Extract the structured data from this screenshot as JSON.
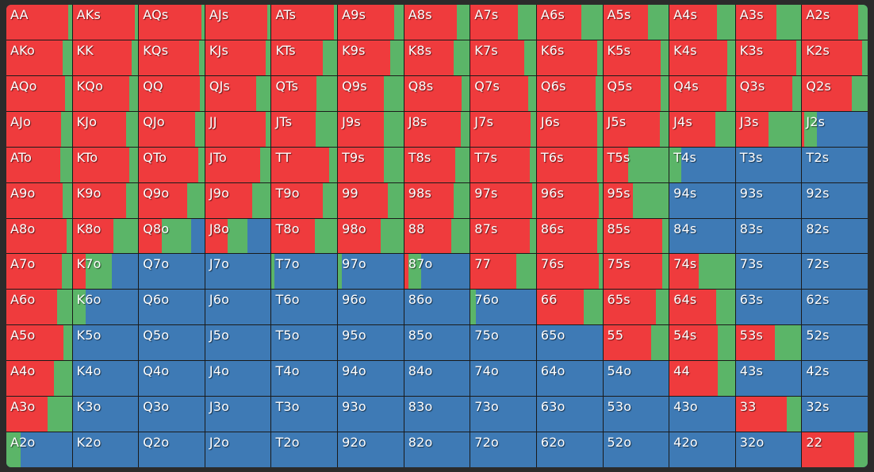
{
  "colors": {
    "raise": "#ef3b3d",
    "call": "#5bb568",
    "fold": "#3e7ab5",
    "background": "#2b2b2b"
  },
  "grid": {
    "rows": [
      [
        {
          "hand": "AA",
          "raise": 0.95,
          "call": 0.05
        },
        {
          "hand": "AKs",
          "raise": 0.95,
          "call": 0.05
        },
        {
          "hand": "AQs",
          "raise": 0.95,
          "call": 0.05
        },
        {
          "hand": "AJs",
          "raise": 0.95,
          "call": 0.05
        },
        {
          "hand": "ATs",
          "raise": 0.95,
          "call": 0.05
        },
        {
          "hand": "A9s",
          "raise": 0.86,
          "call": 0.14
        },
        {
          "hand": "A8s",
          "raise": 0.8,
          "call": 0.2
        },
        {
          "hand": "A7s",
          "raise": 0.72,
          "call": 0.28
        },
        {
          "hand": "A6s",
          "raise": 0.68,
          "call": 0.32
        },
        {
          "hand": "A5s",
          "raise": 0.68,
          "call": 0.32
        },
        {
          "hand": "A4s",
          "raise": 0.73,
          "call": 0.27
        },
        {
          "hand": "A3s",
          "raise": 0.62,
          "call": 0.38
        },
        {
          "hand": "A2s",
          "raise": 0.85,
          "call": 0.15
        }
      ],
      [
        {
          "hand": "AKo",
          "raise": 0.86,
          "call": 0.14
        },
        {
          "hand": "KK",
          "raise": 0.9,
          "call": 0.1
        },
        {
          "hand": "KQs",
          "raise": 0.92,
          "call": 0.08
        },
        {
          "hand": "KJs",
          "raise": 0.92,
          "call": 0.08
        },
        {
          "hand": "KTs",
          "raise": 0.78,
          "call": 0.22
        },
        {
          "hand": "K9s",
          "raise": 0.8,
          "call": 0.2
        },
        {
          "hand": "K8s",
          "raise": 0.76,
          "call": 0.24
        },
        {
          "hand": "K7s",
          "raise": 0.82,
          "call": 0.18
        },
        {
          "hand": "K6s",
          "raise": 0.92,
          "call": 0.08
        },
        {
          "hand": "K5s",
          "raise": 0.88,
          "call": 0.12
        },
        {
          "hand": "K4s",
          "raise": 0.88,
          "call": 0.12
        },
        {
          "hand": "K3s",
          "raise": 0.92,
          "call": 0.08
        },
        {
          "hand": "K2s",
          "raise": 0.92,
          "call": 0.08
        }
      ],
      [
        {
          "hand": "AQo",
          "raise": 0.9,
          "call": 0.1
        },
        {
          "hand": "KQo",
          "raise": 0.87,
          "call": 0.13
        },
        {
          "hand": "QQ",
          "raise": 0.93,
          "call": 0.07
        },
        {
          "hand": "QJs",
          "raise": 0.78,
          "call": 0.22
        },
        {
          "hand": "QTs",
          "raise": 0.68,
          "call": 0.32
        },
        {
          "hand": "Q9s",
          "raise": 0.7,
          "call": 0.3
        },
        {
          "hand": "Q8s",
          "raise": 0.88,
          "call": 0.12
        },
        {
          "hand": "Q7s",
          "raise": 0.88,
          "call": 0.12
        },
        {
          "hand": "Q6s",
          "raise": 0.9,
          "call": 0.1
        },
        {
          "hand": "Q5s",
          "raise": 0.88,
          "call": 0.12
        },
        {
          "hand": "Q4s",
          "raise": 0.87,
          "call": 0.13
        },
        {
          "hand": "Q3s",
          "raise": 0.86,
          "call": 0.14
        },
        {
          "hand": "Q2s",
          "raise": 0.76,
          "call": 0.24
        }
      ],
      [
        {
          "hand": "AJo",
          "raise": 0.84,
          "call": 0.16
        },
        {
          "hand": "KJo",
          "raise": 0.82,
          "call": 0.18
        },
        {
          "hand": "QJo",
          "raise": 0.86,
          "call": 0.14
        },
        {
          "hand": "JJ",
          "raise": 0.92,
          "call": 0.08
        },
        {
          "hand": "JTs",
          "raise": 0.67,
          "call": 0.33
        },
        {
          "hand": "J9s",
          "raise": 0.7,
          "call": 0.3
        },
        {
          "hand": "J8s",
          "raise": 0.86,
          "call": 0.14
        },
        {
          "hand": "J7s",
          "raise": 0.92,
          "call": 0.08
        },
        {
          "hand": "J6s",
          "raise": 0.92,
          "call": 0.08
        },
        {
          "hand": "J5s",
          "raise": 0.86,
          "call": 0.14
        },
        {
          "hand": "J4s",
          "raise": 0.7,
          "call": 0.3
        },
        {
          "hand": "J3s",
          "raise": 0.5,
          "call": 0.5
        },
        {
          "hand": "J2s",
          "raise": 0.03,
          "call": 0.2
        }
      ],
      [
        {
          "hand": "ATo",
          "raise": 0.82,
          "call": 0.18
        },
        {
          "hand": "KTo",
          "raise": 0.87,
          "call": 0.13
        },
        {
          "hand": "QTo",
          "raise": 0.9,
          "call": 0.1
        },
        {
          "hand": "JTo",
          "raise": 0.84,
          "call": 0.16
        },
        {
          "hand": "TT",
          "raise": 0.88,
          "call": 0.12
        },
        {
          "hand": "T9s",
          "raise": 0.7,
          "call": 0.3
        },
        {
          "hand": "T8s",
          "raise": 0.78,
          "call": 0.22
        },
        {
          "hand": "T7s",
          "raise": 0.9,
          "call": 0.1
        },
        {
          "hand": "T6s",
          "raise": 0.92,
          "call": 0.08
        },
        {
          "hand": "T5s",
          "raise": 0.38,
          "call": 0.62
        },
        {
          "hand": "T4s",
          "raise": 0.0,
          "call": 0.18
        },
        {
          "hand": "T3s",
          "raise": 0.0,
          "call": 0.0
        },
        {
          "hand": "T2s",
          "raise": 0.0,
          "call": 0.0
        }
      ],
      [
        {
          "hand": "A9o",
          "raise": 0.86,
          "call": 0.14
        },
        {
          "hand": "K9o",
          "raise": 0.82,
          "call": 0.18
        },
        {
          "hand": "Q9o",
          "raise": 0.74,
          "call": 0.26
        },
        {
          "hand": "J9o",
          "raise": 0.72,
          "call": 0.28
        },
        {
          "hand": "T9o",
          "raise": 0.78,
          "call": 0.22
        },
        {
          "hand": "99",
          "raise": 0.76,
          "call": 0.24
        },
        {
          "hand": "98s",
          "raise": 0.76,
          "call": 0.24
        },
        {
          "hand": "97s",
          "raise": 0.94,
          "call": 0.06
        },
        {
          "hand": "96s",
          "raise": 0.94,
          "call": 0.06
        },
        {
          "hand": "95s",
          "raise": 0.45,
          "call": 0.55
        },
        {
          "hand": "94s",
          "raise": 0.0,
          "call": 0.0
        },
        {
          "hand": "93s",
          "raise": 0.0,
          "call": 0.0
        },
        {
          "hand": "92s",
          "raise": 0.0,
          "call": 0.0
        }
      ],
      [
        {
          "hand": "A8o",
          "raise": 0.92,
          "call": 0.08
        },
        {
          "hand": "K8o",
          "raise": 0.62,
          "call": 0.38
        },
        {
          "hand": "Q8o",
          "raise": 0.35,
          "call": 0.45
        },
        {
          "hand": "J8o",
          "raise": 0.34,
          "call": 0.3
        },
        {
          "hand": "T8o",
          "raise": 0.66,
          "call": 0.34
        },
        {
          "hand": "98o",
          "raise": 0.65,
          "call": 0.35
        },
        {
          "hand": "88",
          "raise": 0.72,
          "call": 0.28
        },
        {
          "hand": "87s",
          "raise": 0.9,
          "call": 0.1
        },
        {
          "hand": "86s",
          "raise": 0.92,
          "call": 0.08
        },
        {
          "hand": "85s",
          "raise": 0.9,
          "call": 0.1
        },
        {
          "hand": "84s",
          "raise": 0.0,
          "call": 0.0
        },
        {
          "hand": "83s",
          "raise": 0.0,
          "call": 0.0
        },
        {
          "hand": "82s",
          "raise": 0.0,
          "call": 0.0
        }
      ],
      [
        {
          "hand": "A7o",
          "raise": 0.85,
          "call": 0.15
        },
        {
          "hand": "K7o",
          "raise": 0.2,
          "call": 0.4
        },
        {
          "hand": "Q7o",
          "raise": 0.0,
          "call": 0.0
        },
        {
          "hand": "J7o",
          "raise": 0.0,
          "call": 0.0
        },
        {
          "hand": "T7o",
          "raise": 0.0,
          "call": 0.04
        },
        {
          "hand": "97o",
          "raise": 0.0,
          "call": 0.06
        },
        {
          "hand": "87o",
          "raise": 0.06,
          "call": 0.2
        },
        {
          "hand": "77",
          "raise": 0.7,
          "call": 0.3
        },
        {
          "hand": "76s",
          "raise": 0.94,
          "call": 0.06
        },
        {
          "hand": "75s",
          "raise": 0.9,
          "call": 0.1
        },
        {
          "hand": "74s",
          "raise": 0.45,
          "call": 0.55
        },
        {
          "hand": "73s",
          "raise": 0.0,
          "call": 0.0
        },
        {
          "hand": "72s",
          "raise": 0.0,
          "call": 0.0
        }
      ],
      [
        {
          "hand": "A6o",
          "raise": 0.77,
          "call": 0.23
        },
        {
          "hand": "K6o",
          "raise": 0.0,
          "call": 0.2
        },
        {
          "hand": "Q6o",
          "raise": 0.0,
          "call": 0.0
        },
        {
          "hand": "J6o",
          "raise": 0.0,
          "call": 0.0
        },
        {
          "hand": "T6o",
          "raise": 0.0,
          "call": 0.0
        },
        {
          "hand": "96o",
          "raise": 0.0,
          "call": 0.0
        },
        {
          "hand": "86o",
          "raise": 0.0,
          "call": 0.0
        },
        {
          "hand": "76o",
          "raise": 0.0,
          "call": 0.08
        },
        {
          "hand": "66",
          "raise": 0.71,
          "call": 0.29
        },
        {
          "hand": "65s",
          "raise": 0.81,
          "call": 0.19
        },
        {
          "hand": "64s",
          "raise": 0.71,
          "call": 0.29
        },
        {
          "hand": "63s",
          "raise": 0.0,
          "call": 0.0
        },
        {
          "hand": "62s",
          "raise": 0.0,
          "call": 0.0
        }
      ],
      [
        {
          "hand": "A5o",
          "raise": 0.87,
          "call": 0.13
        },
        {
          "hand": "K5o",
          "raise": 0.0,
          "call": 0.0
        },
        {
          "hand": "Q5o",
          "raise": 0.0,
          "call": 0.0
        },
        {
          "hand": "J5o",
          "raise": 0.0,
          "call": 0.0
        },
        {
          "hand": "T5o",
          "raise": 0.0,
          "call": 0.0
        },
        {
          "hand": "95o",
          "raise": 0.0,
          "call": 0.0
        },
        {
          "hand": "85o",
          "raise": 0.0,
          "call": 0.0
        },
        {
          "hand": "75o",
          "raise": 0.0,
          "call": 0.0
        },
        {
          "hand": "65o",
          "raise": 0.0,
          "call": 0.0
        },
        {
          "hand": "55",
          "raise": 0.73,
          "call": 0.27
        },
        {
          "hand": "54s",
          "raise": 0.74,
          "call": 0.26
        },
        {
          "hand": "53s",
          "raise": 0.6,
          "call": 0.4
        },
        {
          "hand": "52s",
          "raise": 0.0,
          "call": 0.0
        }
      ],
      [
        {
          "hand": "A4o",
          "raise": 0.73,
          "call": 0.27
        },
        {
          "hand": "K4o",
          "raise": 0.0,
          "call": 0.0
        },
        {
          "hand": "Q4o",
          "raise": 0.0,
          "call": 0.0
        },
        {
          "hand": "J4o",
          "raise": 0.0,
          "call": 0.0
        },
        {
          "hand": "T4o",
          "raise": 0.0,
          "call": 0.0
        },
        {
          "hand": "94o",
          "raise": 0.0,
          "call": 0.0
        },
        {
          "hand": "84o",
          "raise": 0.0,
          "call": 0.0
        },
        {
          "hand": "74o",
          "raise": 0.0,
          "call": 0.0
        },
        {
          "hand": "64o",
          "raise": 0.0,
          "call": 0.0
        },
        {
          "hand": "54o",
          "raise": 0.0,
          "call": 0.0
        },
        {
          "hand": "44",
          "raise": 0.74,
          "call": 0.26
        },
        {
          "hand": "43s",
          "raise": 0.0,
          "call": 0.0
        },
        {
          "hand": "42s",
          "raise": 0.0,
          "call": 0.0
        }
      ],
      [
        {
          "hand": "A3o",
          "raise": 0.63,
          "call": 0.37
        },
        {
          "hand": "K3o",
          "raise": 0.0,
          "call": 0.0
        },
        {
          "hand": "Q3o",
          "raise": 0.0,
          "call": 0.0
        },
        {
          "hand": "J3o",
          "raise": 0.0,
          "call": 0.0
        },
        {
          "hand": "T3o",
          "raise": 0.0,
          "call": 0.0
        },
        {
          "hand": "93o",
          "raise": 0.0,
          "call": 0.0
        },
        {
          "hand": "83o",
          "raise": 0.0,
          "call": 0.0
        },
        {
          "hand": "73o",
          "raise": 0.0,
          "call": 0.0
        },
        {
          "hand": "63o",
          "raise": 0.0,
          "call": 0.0
        },
        {
          "hand": "53o",
          "raise": 0.0,
          "call": 0.0
        },
        {
          "hand": "43o",
          "raise": 0.0,
          "call": 0.0
        },
        {
          "hand": "33",
          "raise": 0.78,
          "call": 0.22
        },
        {
          "hand": "32s",
          "raise": 0.0,
          "call": 0.0
        }
      ],
      [
        {
          "hand": "A2o",
          "raise": 0.0,
          "call": 0.22
        },
        {
          "hand": "K2o",
          "raise": 0.0,
          "call": 0.0
        },
        {
          "hand": "Q2o",
          "raise": 0.0,
          "call": 0.0
        },
        {
          "hand": "J2o",
          "raise": 0.0,
          "call": 0.0
        },
        {
          "hand": "T2o",
          "raise": 0.0,
          "call": 0.0
        },
        {
          "hand": "92o",
          "raise": 0.0,
          "call": 0.0
        },
        {
          "hand": "82o",
          "raise": 0.0,
          "call": 0.0
        },
        {
          "hand": "72o",
          "raise": 0.0,
          "call": 0.0
        },
        {
          "hand": "62o",
          "raise": 0.0,
          "call": 0.0
        },
        {
          "hand": "52o",
          "raise": 0.0,
          "call": 0.0
        },
        {
          "hand": "42o",
          "raise": 0.0,
          "call": 0.0
        },
        {
          "hand": "32o",
          "raise": 0.0,
          "call": 0.0
        },
        {
          "hand": "22",
          "raise": 0.8,
          "call": 0.2
        }
      ]
    ]
  }
}
